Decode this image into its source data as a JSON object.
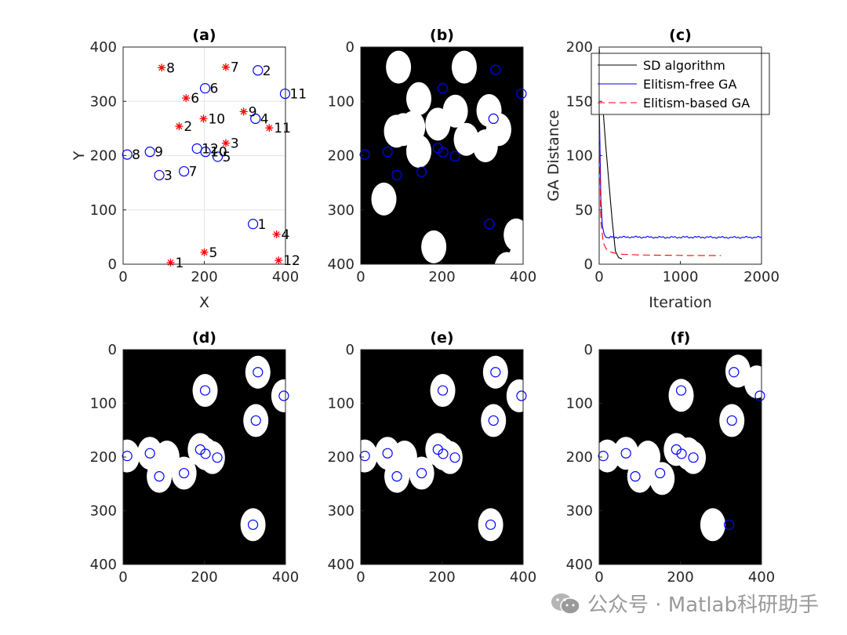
{
  "watermark": "公众号 · Matlab科研助手",
  "chart_data": [
    {
      "id": "a",
      "type": "scatter",
      "title": "(a)",
      "xlabel": "X",
      "ylabel": "Y",
      "xlim": [
        0,
        400
      ],
      "ylim": [
        0,
        400
      ],
      "xticks": [
        "0",
        "200",
        "400"
      ],
      "yticks": [
        "0",
        "100",
        "200",
        "300",
        "400"
      ],
      "grid": true,
      "series": [
        {
          "marker": "star",
          "color": "#ff0000",
          "points": [
            {
              "label": "1",
              "x": 117,
              "y": 3
            },
            {
              "label": "2",
              "x": 138,
              "y": 254
            },
            {
              "label": "3",
              "x": 253,
              "y": 223
            },
            {
              "label": "4",
              "x": 378,
              "y": 55
            },
            {
              "label": "5",
              "x": 200,
              "y": 22
            },
            {
              "label": "6",
              "x": 155,
              "y": 306
            },
            {
              "label": "7",
              "x": 253,
              "y": 363
            },
            {
              "label": "8",
              "x": 95,
              "y": 362
            },
            {
              "label": "9",
              "x": 297,
              "y": 281
            },
            {
              "label": "10",
              "x": 198,
              "y": 268
            },
            {
              "label": "11",
              "x": 360,
              "y": 251
            },
            {
              "label": "12",
              "x": 383,
              "y": 7
            }
          ]
        },
        {
          "marker": "circle",
          "color": "#0000ff",
          "points": [
            {
              "label": "1",
              "x": 320,
              "y": 74
            },
            {
              "label": "2",
              "x": 332,
              "y": 357
            },
            {
              "label": "3",
              "x": 89,
              "y": 164
            },
            {
              "label": "4",
              "x": 326,
              "y": 268
            },
            {
              "label": "5",
              "x": 233,
              "y": 198
            },
            {
              "label": "6",
              "x": 202,
              "y": 324
            },
            {
              "label": "7",
              "x": 150,
              "y": 171
            },
            {
              "label": "8",
              "x": 10,
              "y": 202
            },
            {
              "label": "9",
              "x": 66,
              "y": 207
            },
            {
              "label": "10",
              "x": 203,
              "y": 207
            },
            {
              "label": "11",
              "x": 399,
              "y": 314
            },
            {
              "label": "12",
              "x": 182,
              "y": 213
            }
          ]
        }
      ]
    },
    {
      "id": "b",
      "type": "scatter",
      "title": "(b)",
      "xlim": [
        0,
        400
      ],
      "ylim": [
        400,
        0
      ],
      "xticks": [
        "0",
        "200",
        "400"
      ],
      "yticks": [
        "0",
        "100",
        "200",
        "300",
        "400"
      ],
      "background": "#000000",
      "ellipses": [
        [
          93,
          37
        ],
        [
          255,
          37
        ],
        [
          233,
          118
        ],
        [
          143,
          95
        ],
        [
          143,
          192
        ],
        [
          307,
          182
        ],
        [
          180,
          368
        ],
        [
          383,
          346
        ],
        [
          395,
          390
        ],
        [
          360,
          408
        ],
        [
          57,
          280
        ],
        [
          190,
          142
        ],
        [
          128,
          148
        ],
        [
          260,
          170
        ],
        [
          316,
          117
        ],
        [
          340,
          152
        ],
        [
          88,
          155
        ],
        [
          105,
          152
        ]
      ],
      "circles": [
        [
          332,
          42
        ],
        [
          396,
          86
        ],
        [
          317,
          326
        ],
        [
          327,
          132
        ],
        [
          202,
          76
        ],
        [
          10,
          198
        ],
        [
          66,
          193
        ],
        [
          89,
          236
        ],
        [
          150,
          230
        ],
        [
          190,
          186
        ],
        [
          203,
          194
        ],
        [
          232,
          201
        ]
      ]
    },
    {
      "id": "c",
      "type": "line",
      "title": "(c)",
      "xlabel": "Iteration",
      "ylabel": "GA Distance",
      "xlim": [
        0,
        2000
      ],
      "ylim": [
        0,
        200
      ],
      "xticks": [
        "0",
        "1000",
        "2000"
      ],
      "yticks": [
        "0",
        "50",
        "100",
        "150",
        "200"
      ],
      "legend": "top-right",
      "series": [
        {
          "name": "SD algorithm",
          "color": "#000000",
          "style": "solid",
          "x": [
            0,
            20,
            50,
            80,
            120,
            160,
            200,
            240,
            280
          ],
          "y": [
            200,
            175,
            140,
            110,
            75,
            40,
            12,
            6,
            5
          ]
        },
        {
          "name": "Elitism-free GA",
          "color": "#0000ff",
          "style": "solid",
          "x": [
            0,
            10,
            20,
            40,
            60,
            80,
            100,
            150,
            200,
            400,
            800,
            1200,
            1600,
            2000
          ],
          "y": [
            150,
            110,
            60,
            35,
            28,
            25,
            24.5,
            25,
            24.8,
            25,
            24.7,
            24.9,
            24.6,
            24.8
          ]
        },
        {
          "name": "Elitism-based GA",
          "color": "#ff0000",
          "style": "dashed",
          "x": [
            0,
            20,
            50,
            80,
            100,
            150,
            200,
            300,
            500,
            800,
            1100,
            1500
          ],
          "y": [
            130,
            40,
            20,
            15,
            13,
            11,
            10,
            9,
            8.5,
            8.2,
            8.0,
            8.0
          ]
        }
      ]
    },
    {
      "id": "d",
      "type": "scatter",
      "title": "(d)",
      "xlim": [
        0,
        400
      ],
      "ylim": [
        400,
        0
      ],
      "xticks": [
        "0",
        "200",
        "400"
      ],
      "yticks": [
        "0",
        "100",
        "200",
        "300",
        "400"
      ],
      "background": "#000000",
      "ellipses": [
        [
          332,
          42
        ],
        [
          396,
          86
        ],
        [
          320,
          326
        ],
        [
          327,
          132
        ],
        [
          202,
          76
        ],
        [
          10,
          198
        ],
        [
          66,
          193
        ],
        [
          89,
          236
        ],
        [
          150,
          230
        ],
        [
          190,
          186
        ],
        [
          203,
          194
        ],
        [
          220,
          201
        ],
        [
          108,
          200
        ]
      ],
      "circles": [
        [
          332,
          42
        ],
        [
          396,
          86
        ],
        [
          320,
          326
        ],
        [
          327,
          132
        ],
        [
          202,
          76
        ],
        [
          10,
          198
        ],
        [
          66,
          193
        ],
        [
          89,
          236
        ],
        [
          150,
          230
        ],
        [
          190,
          186
        ],
        [
          203,
          194
        ],
        [
          232,
          201
        ]
      ]
    },
    {
      "id": "e",
      "type": "scatter",
      "title": "(e)",
      "xlim": [
        0,
        400
      ],
      "ylim": [
        400,
        0
      ],
      "xticks": [
        "0",
        "200",
        "400"
      ],
      "yticks": [
        "0",
        "100",
        "200",
        "300",
        "400"
      ],
      "background": "#000000",
      "ellipses": [
        [
          332,
          42
        ],
        [
          390,
          86
        ],
        [
          320,
          326
        ],
        [
          327,
          132
        ],
        [
          202,
          76
        ],
        [
          10,
          198
        ],
        [
          66,
          193
        ],
        [
          89,
          236
        ],
        [
          150,
          230
        ],
        [
          190,
          186
        ],
        [
          203,
          194
        ],
        [
          220,
          201
        ],
        [
          108,
          200
        ]
      ],
      "circles": [
        [
          332,
          42
        ],
        [
          396,
          86
        ],
        [
          320,
          326
        ],
        [
          327,
          132
        ],
        [
          202,
          76
        ],
        [
          10,
          198
        ],
        [
          66,
          193
        ],
        [
          89,
          236
        ],
        [
          150,
          230
        ],
        [
          190,
          186
        ],
        [
          203,
          194
        ],
        [
          232,
          201
        ]
      ]
    },
    {
      "id": "f",
      "type": "scatter",
      "title": "(f)",
      "xlim": [
        0,
        400
      ],
      "ylim": [
        400,
        0
      ],
      "xticks": [
        "0",
        "200",
        "400"
      ],
      "yticks": [
        "0",
        "100",
        "200",
        "300",
        "400"
      ],
      "background": "#000000",
      "ellipses": [
        [
          342,
          40
        ],
        [
          388,
          60
        ],
        [
          280,
          326
        ],
        [
          327,
          132
        ],
        [
          202,
          85
        ],
        [
          20,
          198
        ],
        [
          66,
          193
        ],
        [
          100,
          236
        ],
        [
          155,
          240
        ],
        [
          190,
          186
        ],
        [
          220,
          194
        ],
        [
          232,
          201
        ],
        [
          120,
          200
        ]
      ],
      "circles": [
        [
          332,
          42
        ],
        [
          396,
          86
        ],
        [
          320,
          326
        ],
        [
          327,
          132
        ],
        [
          202,
          76
        ],
        [
          10,
          198
        ],
        [
          66,
          193
        ],
        [
          89,
          236
        ],
        [
          150,
          230
        ],
        [
          190,
          186
        ],
        [
          203,
          194
        ],
        [
          232,
          201
        ]
      ]
    }
  ]
}
